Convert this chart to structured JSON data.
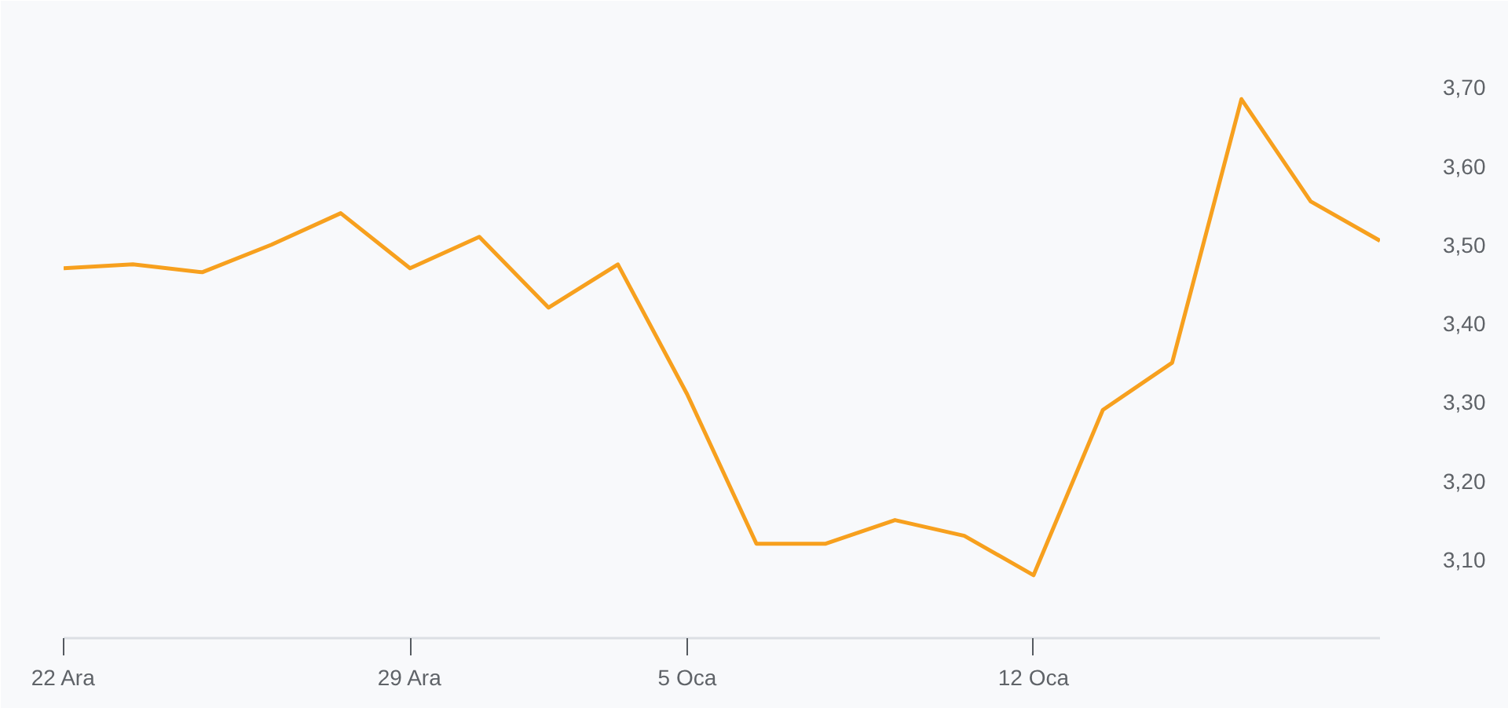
{
  "chart_data": {
    "type": "line",
    "categories": [
      "22 Ara",
      null,
      null,
      null,
      null,
      "29 Ara",
      null,
      null,
      null,
      "5 Oca",
      null,
      null,
      null,
      null,
      "12 Oca",
      null,
      null,
      null,
      null,
      null
    ],
    "series": [
      {
        "color": "#f7a01e",
        "values": [
          3.47,
          3.475,
          3.465,
          3.5,
          3.54,
          3.47,
          3.51,
          3.42,
          3.475,
          3.31,
          3.12,
          3.12,
          3.15,
          3.13,
          3.08,
          3.29,
          3.35,
          3.685,
          3.555,
          3.505
        ]
      }
    ],
    "ylim": [
      3.0,
      3.8
    ],
    "yticks": [
      {
        "value": 3.1,
        "label": "3,10"
      },
      {
        "value": 3.2,
        "label": "3,20"
      },
      {
        "value": 3.3,
        "label": "3,30"
      },
      {
        "value": 3.4,
        "label": "3,40"
      },
      {
        "value": 3.5,
        "label": "3,50"
      },
      {
        "value": 3.6,
        "label": "3,60"
      },
      {
        "value": 3.7,
        "label": "3,70"
      }
    ],
    "grid": false,
    "marker": "none"
  }
}
